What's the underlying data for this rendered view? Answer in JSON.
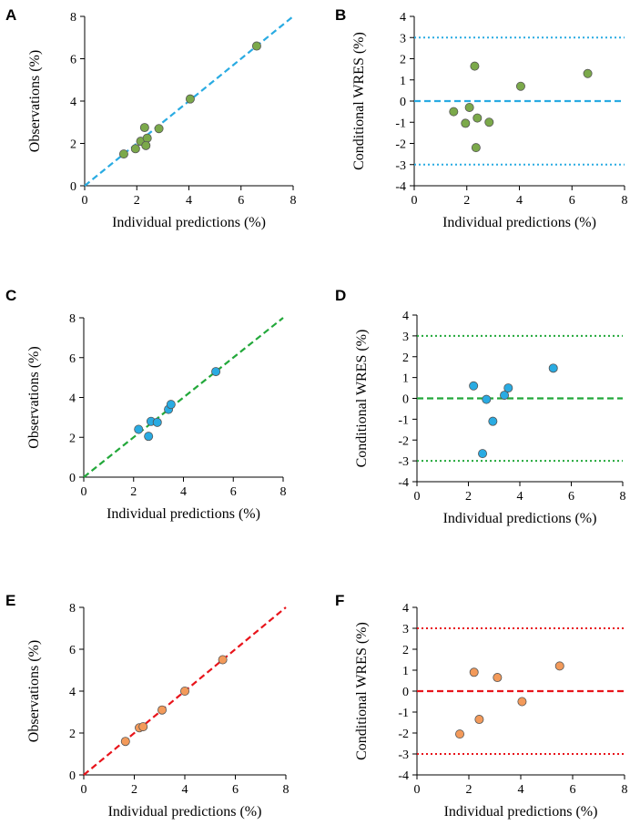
{
  "figure": {
    "panels": [
      "A",
      "B",
      "C",
      "D",
      "E",
      "F"
    ]
  },
  "chart_data": [
    {
      "id": "A",
      "type": "scatter",
      "panel_label": "A",
      "xlabel": "Individual predictions (%)",
      "ylabel": "Observations (%)",
      "xlim": [
        0,
        8
      ],
      "ylim": [
        0,
        8
      ],
      "xticks": [
        0,
        2,
        4,
        6,
        8
      ],
      "yticks": [
        0,
        2,
        4,
        6,
        8
      ],
      "color": "#29ABE2",
      "point_color": "#7BA94A",
      "points": [
        [
          1.5,
          1.5
        ],
        [
          1.95,
          1.75
        ],
        [
          2.15,
          2.1
        ],
        [
          2.3,
          2.75
        ],
        [
          2.4,
          2.25
        ],
        [
          2.35,
          1.9
        ],
        [
          2.85,
          2.7
        ],
        [
          4.05,
          4.1
        ],
        [
          6.6,
          6.6
        ]
      ],
      "identity_line": true
    },
    {
      "id": "B",
      "type": "scatter",
      "panel_label": "B",
      "xlabel": "Individual predictions (%)",
      "ylabel": "Conditional WRES (%)",
      "xlim": [
        0,
        8
      ],
      "ylim": [
        -4,
        4
      ],
      "xticks": [
        0,
        2,
        4,
        6,
        8
      ],
      "yticks": [
        -4,
        -3,
        -2,
        -1,
        0,
        1,
        2,
        3,
        4
      ],
      "color": "#29ABE2",
      "point_color": "#7BA94A",
      "points": [
        [
          1.5,
          -0.5
        ],
        [
          1.95,
          -1.05
        ],
        [
          2.1,
          -0.3
        ],
        [
          2.3,
          1.65
        ],
        [
          2.4,
          -0.8
        ],
        [
          2.35,
          -2.2
        ],
        [
          2.85,
          -1.0
        ],
        [
          4.05,
          0.7
        ],
        [
          6.6,
          1.3
        ]
      ],
      "ref_lines": [
        -3,
        0,
        3
      ]
    },
    {
      "id": "C",
      "type": "scatter",
      "panel_label": "C",
      "xlabel": "Individual predictions (%)",
      "ylabel": "Observations (%)",
      "xlim": [
        0,
        8
      ],
      "ylim": [
        0,
        8
      ],
      "xticks": [
        0,
        2,
        4,
        6,
        8
      ],
      "yticks": [
        0,
        2,
        4,
        6,
        8
      ],
      "color": "#22A83A",
      "point_color": "#29ABE2",
      "points": [
        [
          2.2,
          2.4
        ],
        [
          2.6,
          2.05
        ],
        [
          2.7,
          2.8
        ],
        [
          2.95,
          2.75
        ],
        [
          3.4,
          3.4
        ],
        [
          3.5,
          3.65
        ],
        [
          5.3,
          5.3
        ]
      ],
      "identity_line": true
    },
    {
      "id": "D",
      "type": "scatter",
      "panel_label": "D",
      "xlabel": "Individual predictions (%)",
      "ylabel": "Conditional WRES (%)",
      "xlim": [
        0,
        8
      ],
      "ylim": [
        -4,
        4
      ],
      "xticks": [
        0,
        2,
        4,
        6,
        8
      ],
      "yticks": [
        -4,
        -3,
        -2,
        -1,
        0,
        1,
        2,
        3,
        4
      ],
      "color": "#22A83A",
      "point_color": "#29ABE2",
      "points": [
        [
          2.2,
          0.6
        ],
        [
          2.55,
          -2.65
        ],
        [
          2.7,
          -0.05
        ],
        [
          2.95,
          -1.1
        ],
        [
          3.4,
          0.15
        ],
        [
          3.55,
          0.5
        ],
        [
          5.3,
          1.45
        ]
      ],
      "ref_lines": [
        -3,
        0,
        3
      ]
    },
    {
      "id": "E",
      "type": "scatter",
      "panel_label": "E",
      "xlabel": "Individual predictions (%)",
      "ylabel": "Observations (%)",
      "xlim": [
        0,
        8
      ],
      "ylim": [
        0,
        8
      ],
      "xticks": [
        0,
        2,
        4,
        6,
        8
      ],
      "yticks": [
        0,
        2,
        4,
        6,
        8
      ],
      "color": "#E8141B",
      "point_color": "#F39A5A",
      "points": [
        [
          1.65,
          1.6
        ],
        [
          2.2,
          2.25
        ],
        [
          2.35,
          2.3
        ],
        [
          3.1,
          3.1
        ],
        [
          4.0,
          4.0
        ],
        [
          5.5,
          5.5
        ]
      ],
      "identity_line": true
    },
    {
      "id": "F",
      "type": "scatter",
      "panel_label": "F",
      "xlabel": "Individual predictions (%)",
      "ylabel": "Conditional WRES (%)",
      "xlim": [
        0,
        8
      ],
      "ylim": [
        -4,
        4
      ],
      "xticks": [
        0,
        2,
        4,
        6,
        8
      ],
      "yticks": [
        -4,
        -3,
        -2,
        -1,
        0,
        1,
        2,
        3,
        4
      ],
      "color": "#E8141B",
      "point_color": "#F39A5A",
      "points": [
        [
          1.65,
          -2.05
        ],
        [
          2.2,
          0.9
        ],
        [
          2.4,
          -1.35
        ],
        [
          3.1,
          0.65
        ],
        [
          4.05,
          -0.5
        ],
        [
          5.5,
          1.2
        ]
      ],
      "ref_lines": [
        -3,
        0,
        3
      ]
    }
  ]
}
